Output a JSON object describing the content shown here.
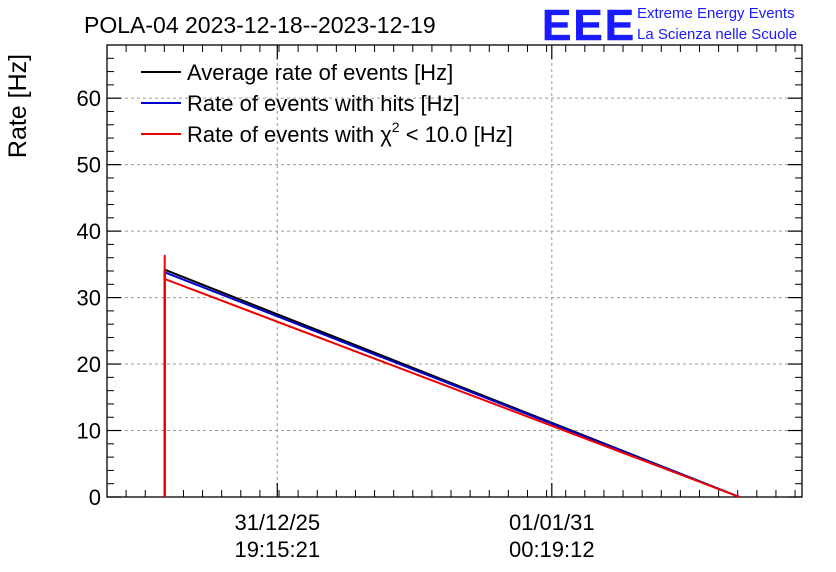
{
  "header": {
    "title": "POLA-04 2023-12-18--2023-12-19",
    "logo_text": "EEE",
    "logo_line1": "Extreme Energy Events",
    "logo_line2": "La Scienza nelle Scuole"
  },
  "colors": {
    "average": "#000000",
    "hits": "#0000cc",
    "chi2": "#ee0000",
    "logo": "#1a1aff",
    "grid": "#9a9a9a"
  },
  "chart_data": {
    "type": "line",
    "ylabel": "Rate [Hz]",
    "xlabel": "",
    "ylim": [
      0,
      68
    ],
    "yticks": [
      "0",
      "10",
      "20",
      "30",
      "40",
      "50",
      "60"
    ],
    "ytick_values": [
      0,
      10,
      20,
      30,
      40,
      50,
      60
    ],
    "xlim": [
      0,
      1
    ],
    "xticks": [
      {
        "date": "31/12/25",
        "time": "19:15:21",
        "pos": 0.245
      },
      {
        "date": "01/01/31",
        "time": "00:19:12",
        "pos": 0.64
      }
    ],
    "grid": true,
    "legend_position": "top-left",
    "legend": [
      {
        "key": "average",
        "label": "Average rate of events [Hz]"
      },
      {
        "key": "hits",
        "label": "Rate of events with hits [Hz]"
      },
      {
        "key": "chi2",
        "label_pre": "Rate of events with ",
        "label_chi": "χ",
        "label_sup": "2",
        "label_post": " < 10.0 [Hz]"
      }
    ],
    "series": [
      {
        "key": "average",
        "name": "Average rate of events [Hz]",
        "points": [
          [
            0.083,
            0
          ],
          [
            0.083,
            34.2
          ],
          [
            0.91,
            0
          ]
        ]
      },
      {
        "key": "hits",
        "name": "Rate of events with hits [Hz]",
        "points": [
          [
            0.083,
            0
          ],
          [
            0.083,
            33.8
          ],
          [
            0.91,
            0
          ]
        ]
      },
      {
        "key": "chi2",
        "name": "Rate of events with χ2 < 10.0 [Hz]",
        "points": [
          [
            0.083,
            0
          ],
          [
            0.083,
            36.3
          ],
          [
            0.083,
            32.8
          ],
          [
            0.91,
            0
          ]
        ]
      }
    ]
  }
}
